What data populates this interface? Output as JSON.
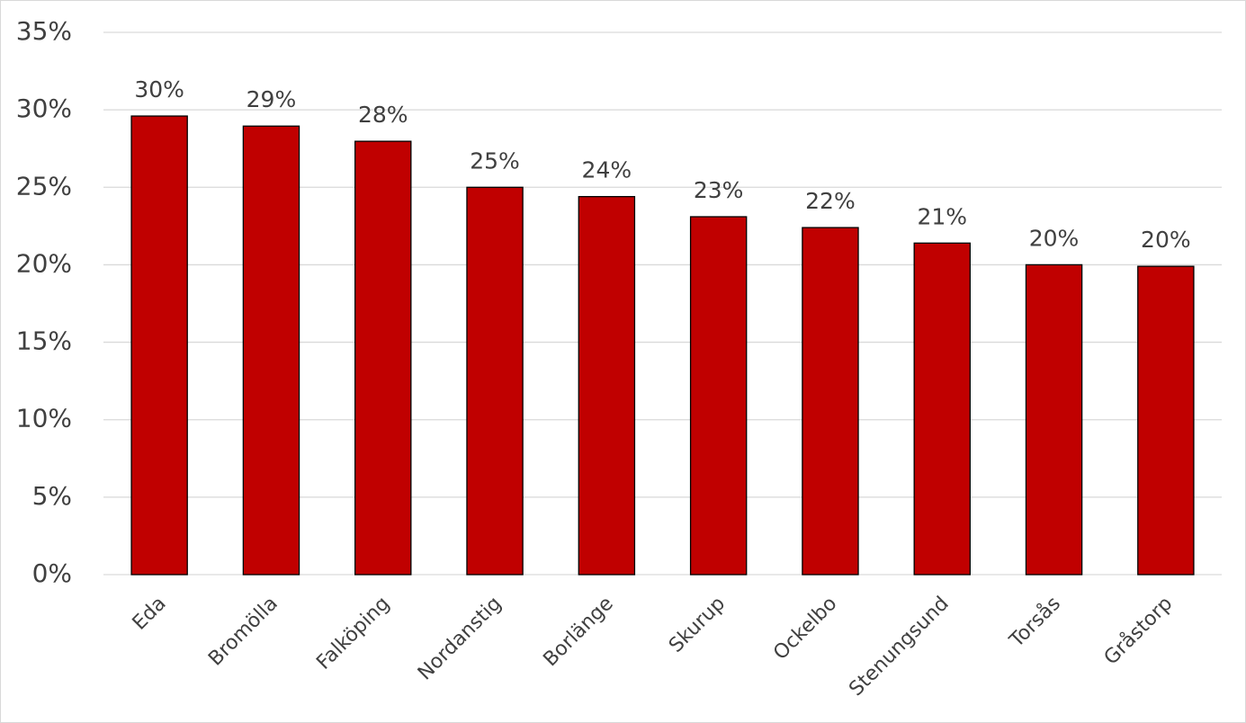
{
  "chart_data": {
    "type": "bar",
    "categories": [
      "Eda",
      "Bromölla",
      "Falköping",
      "Nordanstig",
      "Borlänge",
      "Skurup",
      "Ockelbo",
      "Stenungsund",
      "Torsås",
      "Gråstorp"
    ],
    "values": [
      29.6,
      28.95,
      27.97,
      25.0,
      24.4,
      23.1,
      22.4,
      21.4,
      20.0,
      19.9
    ],
    "value_labels": [
      "30%",
      "29%",
      "28%",
      "25%",
      "24%",
      "23%",
      "22%",
      "21%",
      "20%",
      "20%"
    ],
    "color": "#c00000",
    "ylim": [
      0,
      35
    ],
    "yticks": [
      {
        "value": 0,
        "label": "0%"
      },
      {
        "value": 5,
        "label": "5%"
      },
      {
        "value": 10,
        "label": "10%"
      },
      {
        "value": 15,
        "label": "15%"
      },
      {
        "value": 20,
        "label": "20%"
      },
      {
        "value": 25,
        "label": "25%"
      },
      {
        "value": 30,
        "label": "30%"
      },
      {
        "value": 35,
        "label": "35%"
      }
    ],
    "grid": true
  }
}
